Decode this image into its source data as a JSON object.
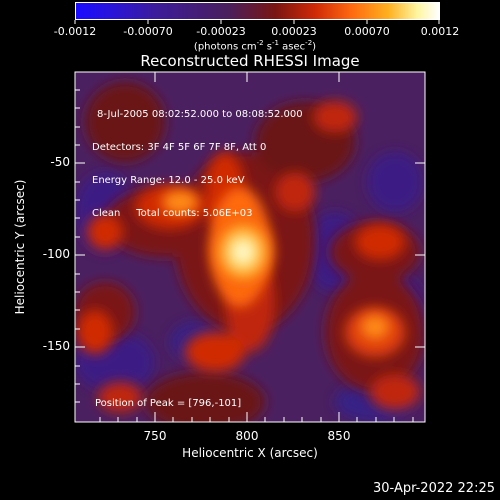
{
  "colorbar": {
    "tick_labels": [
      "-0.0012",
      "-0.00070",
      "-0.00023",
      "0.00023",
      "0.00070",
      "0.0012"
    ],
    "units_prefix": "(photons cm",
    "units_exp1": "-2",
    "units_mid": " s",
    "units_exp2": "-1",
    "units_mid2": " asec",
    "units_exp3": "-2",
    "units_suffix": ")",
    "colors": [
      "#1a0bff",
      "#3c1c9a",
      "#4a1f5c",
      "#7a1612",
      "#d02a06",
      "#ff6a10",
      "#ffb020",
      "#fff5a0",
      "#ffffff"
    ]
  },
  "title": "Reconstructed RHESSI Image",
  "info_lines": [
    "8-Jul-2005 08:02:52.000 to 08:08:52.000",
    "Detectors: 3F 4F 5F 6F 7F 8F, Att 0",
    "Energy Range: 12.0 - 25.0 keV",
    "Clean     Total counts: 5.06E+03"
  ],
  "peak_label": "Position of Peak = [796,-101]",
  "axes": {
    "xlabel": "Heliocentric X (arcsec)",
    "ylabel": "Heliocentric Y (arcsec)",
    "x_ticks": [
      "750",
      "800",
      "850"
    ],
    "y_ticks": [
      "-50",
      "-100",
      "-150"
    ]
  },
  "timestamp": "30-Apr-2022 22:25"
}
